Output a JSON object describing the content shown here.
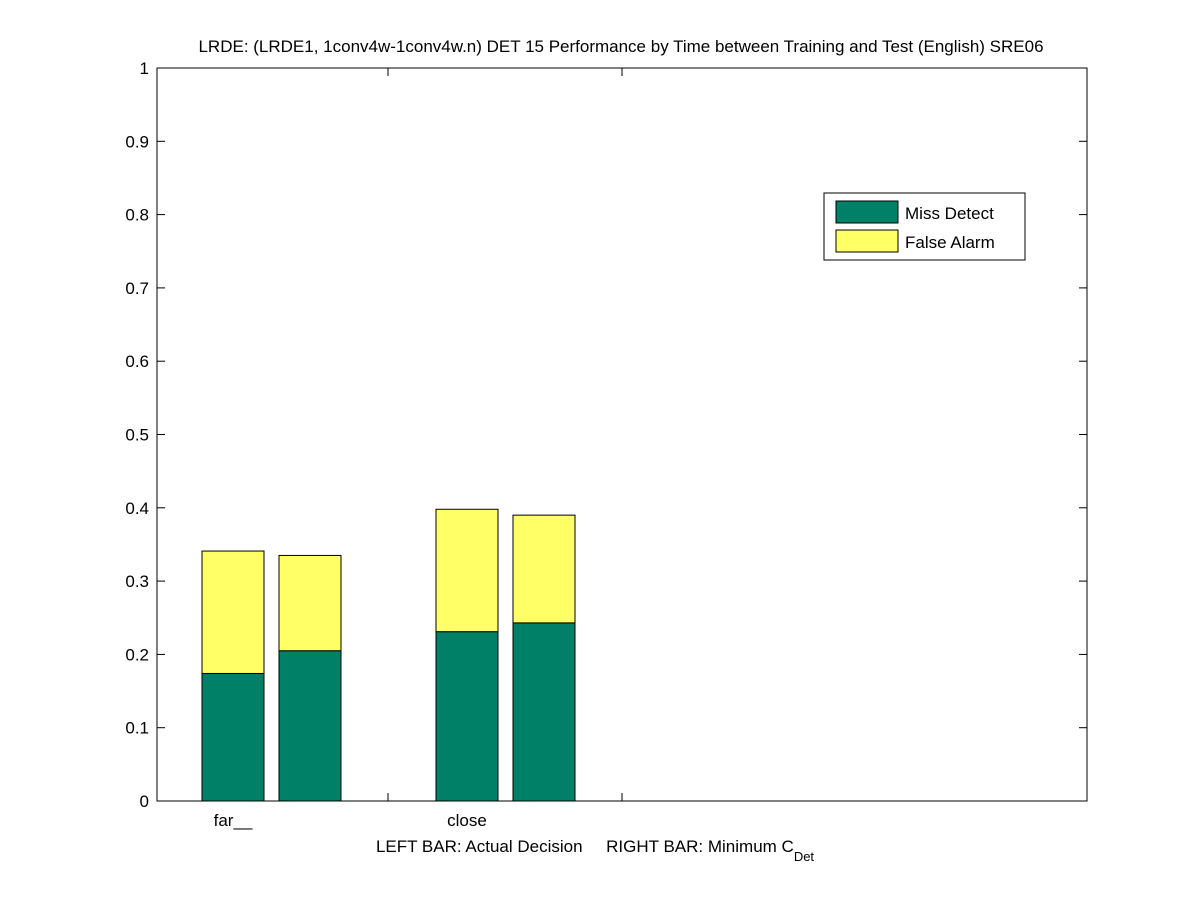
{
  "chart_data": {
    "type": "bar",
    "stacked": true,
    "title": "LRDE: (LRDE1, 1conv4w-1conv4w.n) DET 15 Performance by Time between Training and Test (English) SRE06",
    "xlabel": {
      "prefix": "LEFT BAR: Actual Decision     RIGHT BAR: Minimum C",
      "subscript": "Det"
    },
    "ylabel": "",
    "ylim": [
      0,
      1
    ],
    "yticks": [
      "0",
      "0.1",
      "0.2",
      "0.3",
      "0.4",
      "0.5",
      "0.6",
      "0.7",
      "0.8",
      "0.9",
      "1"
    ],
    "categories": [
      "far__",
      "close"
    ],
    "bars_per_category": [
      "Actual Decision",
      "Minimum C_Det"
    ],
    "series": [
      {
        "name": "Miss Detect",
        "color": "#008066",
        "values": [
          [
            0.174,
            0.205
          ],
          [
            0.231,
            0.243
          ]
        ]
      },
      {
        "name": "False Alarm",
        "color": "#ffff66",
        "values": [
          [
            0.167,
            0.13
          ],
          [
            0.167,
            0.147
          ]
        ]
      }
    ],
    "legend_position": "upper-right",
    "grid": false
  }
}
